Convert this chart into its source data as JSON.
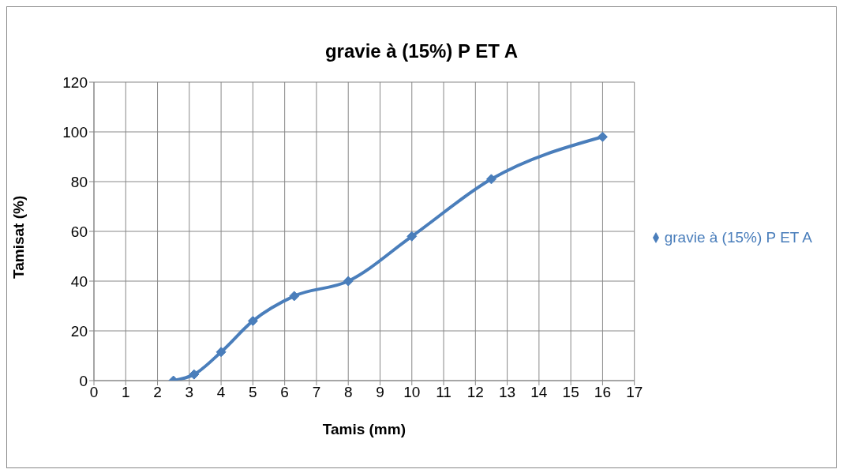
{
  "chart_data": {
    "type": "line",
    "title": "gravie à (15%) P ET A",
    "xlabel": "Tamis (mm)",
    "ylabel": "Tamisat (%)",
    "x": [
      2.5,
      3.15,
      4,
      5,
      6.3,
      8,
      10,
      12.5,
      16
    ],
    "series": [
      {
        "name": "gravie à (15%) P ET A",
        "color": "#4a7ebb",
        "values": [
          0,
          2.5,
          11.5,
          24,
          34,
          40,
          58,
          81,
          98
        ]
      }
    ],
    "xlim": [
      0,
      17
    ],
    "xticks": [
      0,
      1,
      2,
      3,
      4,
      5,
      6,
      7,
      8,
      9,
      10,
      11,
      12,
      13,
      14,
      15,
      16,
      17
    ],
    "ylim": [
      0,
      120
    ],
    "yticks": [
      0,
      20,
      40,
      60,
      80,
      100,
      120
    ],
    "grid": true,
    "legend": "right",
    "marker": "diamond",
    "line_style": "solid"
  }
}
